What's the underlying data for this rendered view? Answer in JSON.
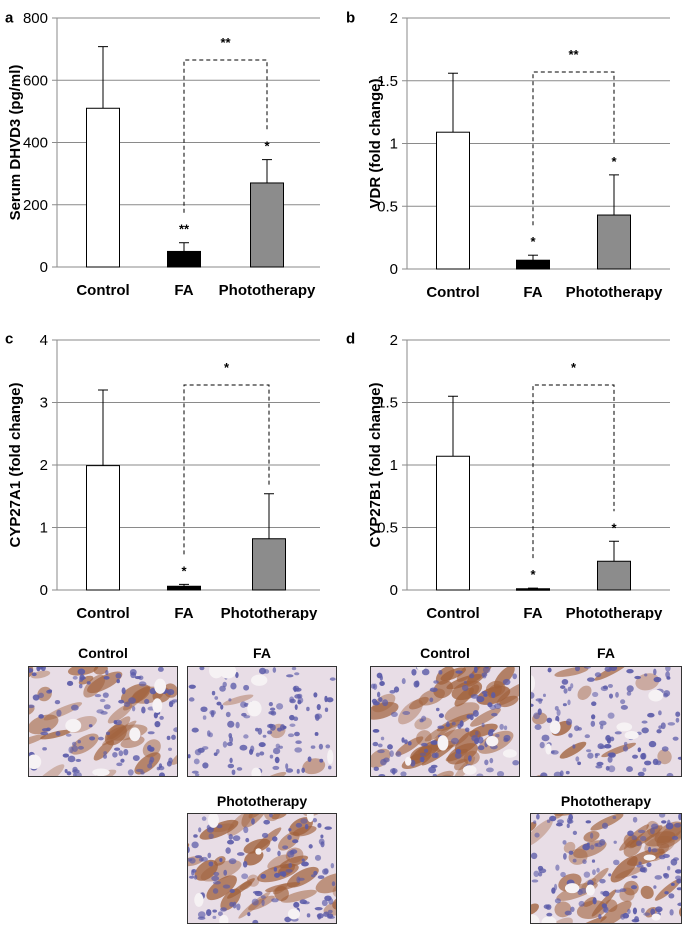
{
  "panels": [
    {
      "label": "a"
    },
    {
      "label": "b"
    },
    {
      "label": "c"
    },
    {
      "label": "d"
    }
  ],
  "chart_data": [
    {
      "type": "bar",
      "title": "",
      "xlabel": "",
      "ylabel": "Serum DHVD3 (pg/ml)",
      "ylim": [
        0,
        800
      ],
      "yticks": [
        "0",
        "200",
        "400",
        "600",
        "800"
      ],
      "grid": true,
      "categories": [
        "Control",
        "FA",
        "Phototherapy"
      ],
      "values": [
        510,
        50,
        270
      ],
      "errors": [
        198,
        28,
        75
      ],
      "bar_colors": [
        "#ffffff",
        "#000000",
        "#8c8c8c"
      ],
      "significance": [
        "",
        "**",
        "*"
      ],
      "bracket": {
        "label": "**",
        "from": "FA",
        "to": "Phototherapy"
      }
    },
    {
      "type": "bar",
      "title": "",
      "xlabel": "",
      "ylabel": "VDR (fold change)",
      "ylim": [
        0,
        2
      ],
      "yticks": [
        "0",
        "0.5",
        "1",
        "1.5",
        "2"
      ],
      "grid": true,
      "categories": [
        "Control",
        "FA",
        "Phototherapy"
      ],
      "values": [
        1.09,
        0.07,
        0.43
      ],
      "errors": [
        0.47,
        0.04,
        0.32
      ],
      "bar_colors": [
        "#ffffff",
        "#000000",
        "#8c8c8c"
      ],
      "significance": [
        "",
        "*",
        "*"
      ],
      "bracket": {
        "label": "**",
        "from": "FA",
        "to": "Phototherapy"
      }
    },
    {
      "type": "bar",
      "title": "",
      "xlabel": "",
      "ylabel": "CYP27A1 (fold change)",
      "ylim": [
        0,
        4
      ],
      "yticks": [
        "0",
        "1",
        "2",
        "3",
        "4"
      ],
      "grid": true,
      "categories": [
        "Control",
        "FA",
        "Phototherapy"
      ],
      "values": [
        1.99,
        0.06,
        0.82
      ],
      "errors": [
        1.21,
        0.03,
        0.72
      ],
      "bar_colors": [
        "#ffffff",
        "#000000",
        "#8c8c8c"
      ],
      "significance": [
        "",
        "*",
        ""
      ],
      "bracket": {
        "label": "*",
        "from": "FA",
        "to": "Phototherapy"
      }
    },
    {
      "type": "bar",
      "title": "",
      "xlabel": "",
      "ylabel": "CYP27B1 (fold change)",
      "ylim": [
        0,
        2
      ],
      "yticks": [
        "0",
        "0.5",
        "1",
        "1.5",
        "2"
      ],
      "grid": true,
      "categories": [
        "Control",
        "FA",
        "Phototherapy"
      ],
      "values": [
        1.07,
        0.01,
        0.23
      ],
      "errors": [
        0.48,
        0.005,
        0.16
      ],
      "bar_colors": [
        "#ffffff",
        "#000000",
        "#8c8c8c"
      ],
      "significance": [
        "",
        "*",
        "*"
      ],
      "bracket": {
        "label": "*",
        "from": "FA",
        "to": "Phototherapy"
      }
    }
  ],
  "micrographs": {
    "left": {
      "control": "Control",
      "fa": "FA",
      "phototherapy": "Phototherapy"
    },
    "right": {
      "control": "Control",
      "fa": "FA",
      "phototherapy": "Phototherapy"
    }
  },
  "colors": {
    "stain_brown": "#a0603a",
    "stain_blue": "#5a5aa8",
    "background": "#e8dde6"
  }
}
